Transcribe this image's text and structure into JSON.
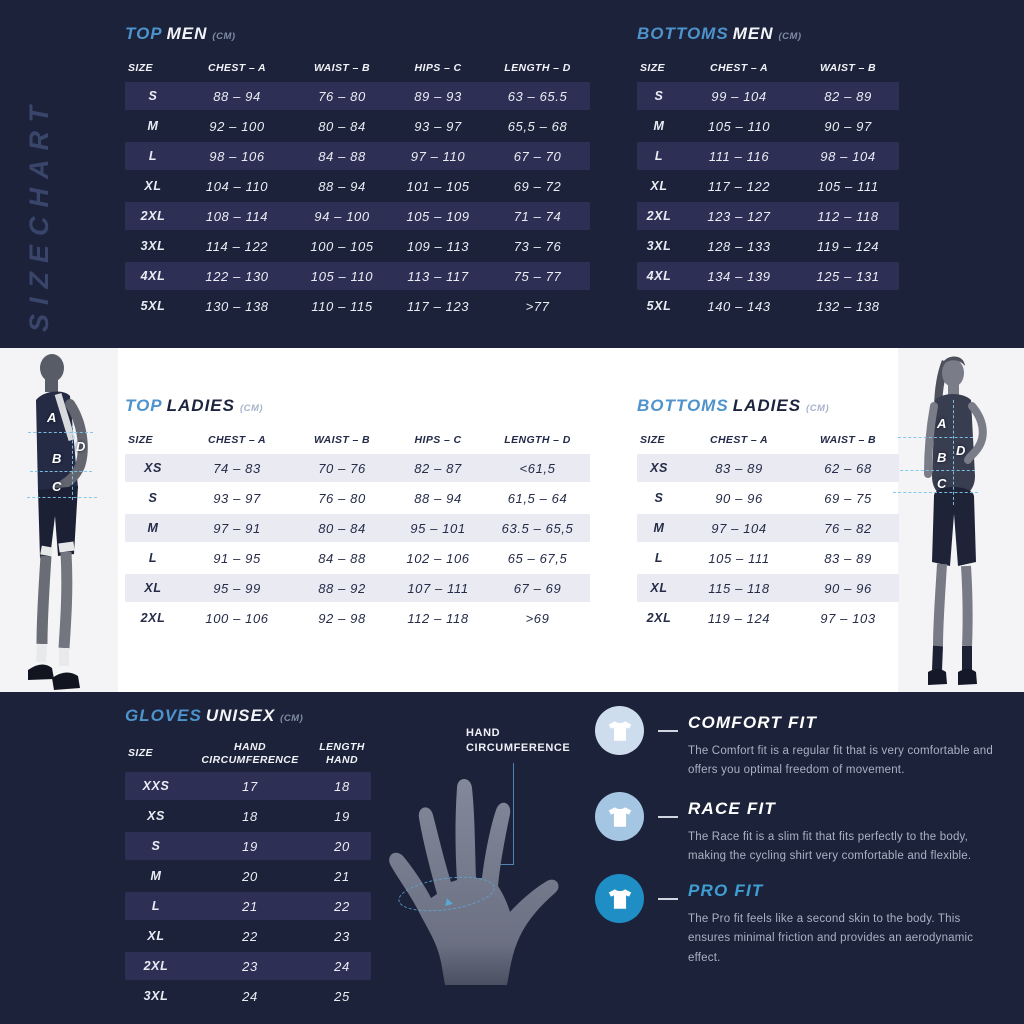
{
  "brand": {
    "sizechart_label": "SIZECHART"
  },
  "tables": {
    "top_men": {
      "title_accent": "TOP",
      "title_main": "MEN",
      "unit": "(CM)",
      "headers": [
        "SIZE",
        "CHEST – A",
        "WAIST – B",
        "HIPS – C",
        "LENGTH – D"
      ],
      "rows": [
        [
          "S",
          "88 – 94",
          "76 – 80",
          "89 – 93",
          "63 – 65.5"
        ],
        [
          "M",
          "92 – 100",
          "80 – 84",
          "93 – 97",
          "65,5 – 68"
        ],
        [
          "L",
          "98 – 106",
          "84 – 88",
          "97 – 110",
          "67 – 70"
        ],
        [
          "XL",
          "104 – 110",
          "88 – 94",
          "101 – 105",
          "69 – 72"
        ],
        [
          "2XL",
          "108 – 114",
          "94 – 100",
          "105 – 109",
          "71 – 74"
        ],
        [
          "3XL",
          "114 – 122",
          "100 – 105",
          "109 – 113",
          "73 – 76"
        ],
        [
          "4XL",
          "122 – 130",
          "105 – 110",
          "113 – 117",
          "75 – 77"
        ],
        [
          "5XL",
          "130 – 138",
          "110 – 115",
          "117 – 123",
          ">77"
        ]
      ]
    },
    "bottoms_men": {
      "title_accent": "BOTTOMS",
      "title_main": "MEN",
      "unit": "(CM)",
      "headers": [
        "SIZE",
        "CHEST – A",
        "WAIST – B"
      ],
      "rows": [
        [
          "S",
          "99 – 104",
          "82 – 89"
        ],
        [
          "M",
          "105 – 110",
          "90 – 97"
        ],
        [
          "L",
          "111 – 116",
          "98 – 104"
        ],
        [
          "XL",
          "117 – 122",
          "105 – 111"
        ],
        [
          "2XL",
          "123 – 127",
          "112 – 118"
        ],
        [
          "3XL",
          "128 – 133",
          "119 – 124"
        ],
        [
          "4XL",
          "134 – 139",
          "125 – 131"
        ],
        [
          "5XL",
          "140 – 143",
          "132 – 138"
        ]
      ]
    },
    "top_ladies": {
      "title_accent": "TOP",
      "title_main": "LADIES",
      "unit": "(CM)",
      "headers": [
        "SIZE",
        "CHEST – A",
        "WAIST – B",
        "HIPS – C",
        "LENGTH – D"
      ],
      "rows": [
        [
          "XS",
          "74 – 83",
          "70 – 76",
          "82 – 87",
          "<61,5"
        ],
        [
          "S",
          "93 – 97",
          "76 – 80",
          "88 – 94",
          "61,5 – 64"
        ],
        [
          "M",
          "97 – 91",
          "80 – 84",
          "95 – 101",
          "63.5 – 65,5"
        ],
        [
          "L",
          "91 – 95",
          "84 – 88",
          "102 – 106",
          "65 – 67,5"
        ],
        [
          "XL",
          "95 – 99",
          "88 – 92",
          "107 – 111",
          "67 – 69"
        ],
        [
          "2XL",
          "100 – 106",
          "92 – 98",
          "112 – 118",
          ">69"
        ]
      ]
    },
    "bottoms_ladies": {
      "title_accent": "BOTTOMS",
      "title_main": "LADIES",
      "unit": "(CM)",
      "headers": [
        "SIZE",
        "CHEST – A",
        "WAIST – B"
      ],
      "rows": [
        [
          "XS",
          "83 – 89",
          "62 – 68"
        ],
        [
          "S",
          "90 – 96",
          "69 – 75"
        ],
        [
          "M",
          "97 – 104",
          "76 – 82"
        ],
        [
          "L",
          "105 – 111",
          "83 – 89"
        ],
        [
          "XL",
          "115 – 118",
          "90 – 96"
        ],
        [
          "2XL",
          "119 – 124",
          "97 – 103"
        ]
      ]
    },
    "gloves_unisex": {
      "title_accent": "GLOVES",
      "title_main": "UNISEX",
      "unit": "(CM)",
      "headers": [
        "SIZE",
        "HAND\nCIRCUMFERENCE",
        "LENGTH\nHAND"
      ],
      "rows": [
        [
          "XXS",
          "17",
          "18"
        ],
        [
          "XS",
          "18",
          "19"
        ],
        [
          "S",
          "19",
          "20"
        ],
        [
          "M",
          "20",
          "21"
        ],
        [
          "L",
          "21",
          "22"
        ],
        [
          "XL",
          "22",
          "23"
        ],
        [
          "2XL",
          "23",
          "24"
        ],
        [
          "3XL",
          "24",
          "25"
        ]
      ]
    }
  },
  "figures": {
    "man_letters": {
      "a": "A",
      "d": "D",
      "b": "B",
      "c": "C"
    },
    "woman_letters": {
      "a": "A",
      "d": "D",
      "b": "B",
      "c": "C"
    }
  },
  "hand_diagram": {
    "label": "HAND\nCIRCUMFERENCE"
  },
  "fits": [
    {
      "name": "COMFORT FIT",
      "desc": "The Comfort fit is a regular fit that is very comfortable and offers you optimal freedom of movement.",
      "circle_color": "#cdddee",
      "title_color": "#ffffff"
    },
    {
      "name": "RACE FIT",
      "desc": "The Race fit is a slim fit that fits perfectly to the body, making the cycling shirt very comfortable and flexible.",
      "circle_color": "#a5c6e2",
      "title_color": "#ffffff"
    },
    {
      "name": "PRO FIT",
      "desc": "The Pro fit feels like a second skin to the body. This ensures minimal friction and provides an aerodynamic effect.",
      "circle_color": "#1f8ec5",
      "title_color": "#3f9fd4"
    }
  ],
  "colors": {
    "background_dark": "#1c2239",
    "row_stripe_dark": "#2d3054",
    "row_stripe_light": "#e9eaf2",
    "accent_blue": "#4e93cb",
    "measure_line": "#7ec4e8"
  }
}
